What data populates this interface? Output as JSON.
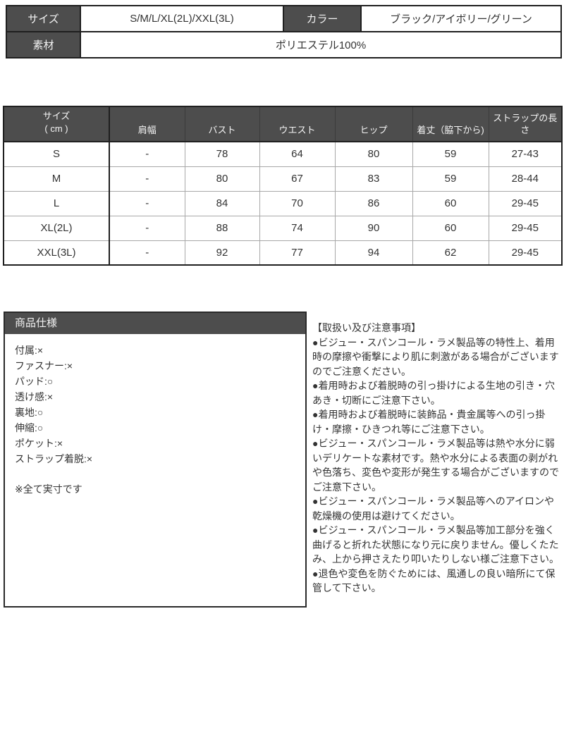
{
  "colors": {
    "dark": "#4d4d4d",
    "border-dark": "#1f1f1f",
    "border-light": "#a8a8a8",
    "text": "#333333",
    "bg": "#ffffff"
  },
  "info_table": {
    "size_label": "サイズ",
    "size_value": "S/M/L/XL(2L)/XXL(3L)",
    "color_label": "カラー",
    "color_value": "ブラック/アイボリー/グリーン",
    "material_label": "素材",
    "material_value": "ポリエステル100%"
  },
  "size_chart": {
    "headers": [
      "サイズ\n( cm )",
      "肩幅",
      "バスト",
      "ウエスト",
      "ヒップ",
      "着丈（脇下から)",
      "ストラップの長さ"
    ],
    "rows": [
      [
        "S",
        "-",
        "78",
        "64",
        "80",
        "59",
        "27-43"
      ],
      [
        "M",
        "-",
        "80",
        "67",
        "83",
        "59",
        "28-44"
      ],
      [
        "L",
        "-",
        "84",
        "70",
        "86",
        "60",
        "29-45"
      ],
      [
        "XL(2L)",
        "-",
        "88",
        "74",
        "90",
        "60",
        "29-45"
      ],
      [
        "XXL(3L)",
        "-",
        "92",
        "77",
        "94",
        "62",
        "29-45"
      ]
    ]
  },
  "product_spec": {
    "title": "商品仕様",
    "items": [
      "付属:×",
      "ファスナー:×",
      "パッド:○",
      "透け感:×",
      "裏地:○",
      "伸縮:○",
      "ポケット:×",
      "ストラップ着脱:×"
    ],
    "note": "※全て実寸です"
  },
  "care_notes": {
    "title": "【取扱い及び注意事項】",
    "items": [
      "●ビジュー・スパンコール・ラメ製品等の特性上、着用時の摩擦や衝撃により肌に刺激がある場合がございますのでご注意ください。",
      "●着用時および着脱時の引っ掛けによる生地の引き・穴あき・切断にご注意下さい。",
      "●着用時および着脱時に装飾品・貴金属等への引っ掛け・摩擦・ひきつれ等にご注意下さい。",
      "●ビジュー・スパンコール・ラメ製品等は熱や水分に弱いデリケートな素材です。熱や水分による表面の剥がれや色落ち、変色や変形が発生する場合がございますのでご注意下さい。",
      "●ビジュー・スパンコール・ラメ製品等へのアイロンや乾燥機の使用は避けてください。",
      "●ビジュー・スパンコール・ラメ製品等加工部分を強く曲げると折れた状態になり元に戻りません。優しくたたみ、上から押さえたり叩いたりしない様ご注意下さい。",
      "●退色や変色を防ぐためには、風通しの良い暗所にて保管して下さい。"
    ]
  }
}
